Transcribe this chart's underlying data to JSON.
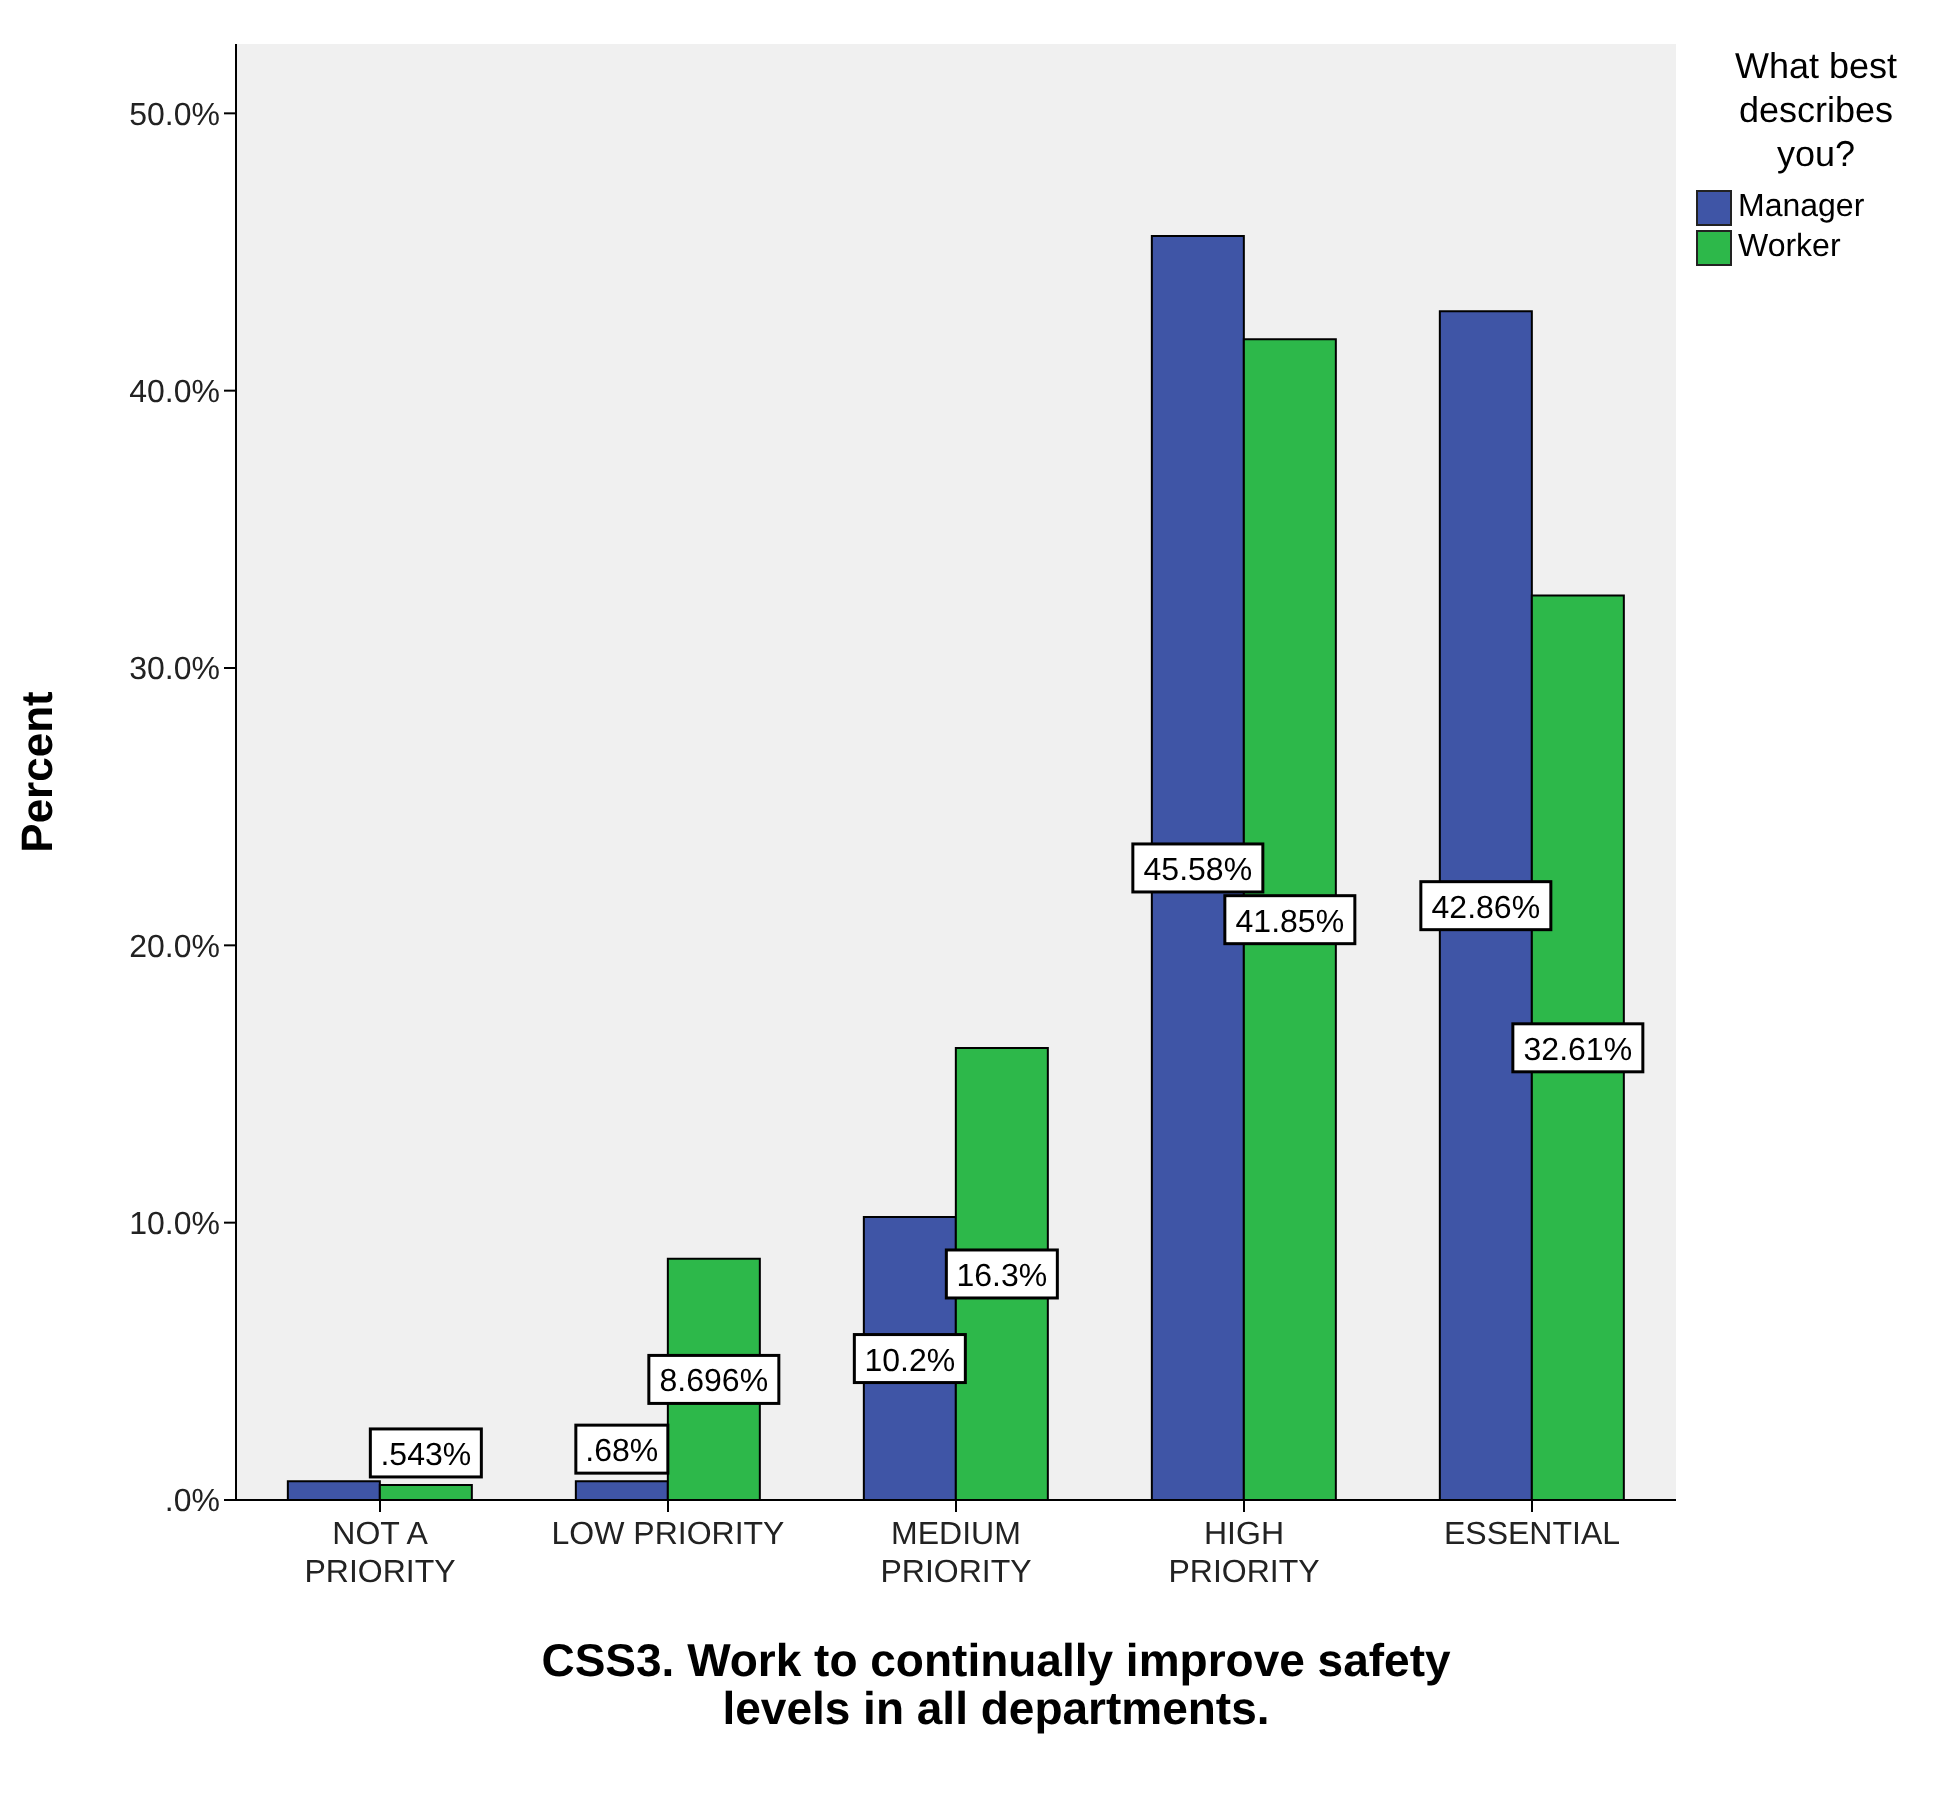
{
  "chart_data": {
    "type": "bar",
    "xlabel": "CSS3. Work to continually improve safety levels in all departments.",
    "ylabel": "Percent",
    "legend_title": "What best describes you?",
    "legend": "top right",
    "categories": [
      "NOT A PRIORITY",
      "LOW PRIORITY",
      "MEDIUM PRIORITY",
      "HIGH PRIORITY",
      "ESSENTIAL"
    ],
    "series": [
      {
        "name": "Manager",
        "color": "#3f55a6",
        "values": [
          0.68,
          0.68,
          10.2,
          45.58,
          42.86
        ],
        "value_labels": [
          null,
          ".68%",
          "10.2%",
          "45.58%",
          "42.86%"
        ]
      },
      {
        "name": "Worker",
        "color": "#2db84a",
        "values": [
          0.543,
          8.696,
          16.3,
          41.85,
          32.61
        ],
        "value_labels": [
          ".543%",
          "8.696%",
          "16.3%",
          "41.85%",
          "32.61%"
        ]
      }
    ],
    "ylim": [
      0,
      52.5
    ],
    "yticks": [
      {
        "value": 0,
        "label": ".0%"
      },
      {
        "value": 10,
        "label": "10.0%"
      },
      {
        "value": 20,
        "label": "20.0%"
      },
      {
        "value": 30,
        "label": "30.0%"
      },
      {
        "value": 40,
        "label": "40.0%"
      },
      {
        "value": 50,
        "label": "50.0%"
      }
    ],
    "grid": false
  }
}
